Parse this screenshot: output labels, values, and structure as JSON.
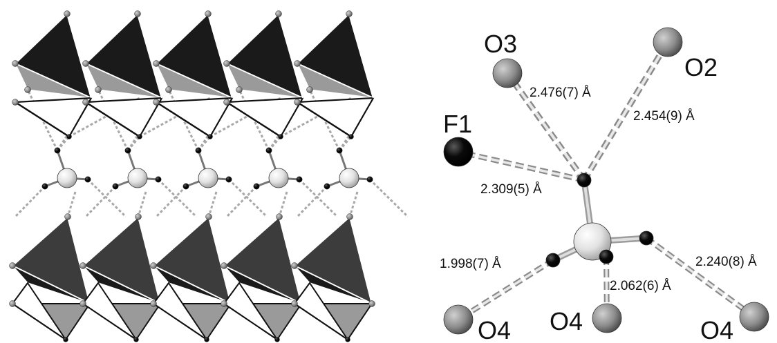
{
  "colors": {
    "polyhedron_dark": "#1a1a1a",
    "polyhedron_mid": "#3c3c3c",
    "polyhedron_light": "#9a9a9a",
    "oxygen_atom": "#8c8c8c",
    "fluorine_atom": "#0a0a0a",
    "central_atom": "#e2e2e2",
    "hydrogen_atom": "#0a0a0a",
    "hydrogen_bond": "#a8a8a8"
  },
  "coordination": {
    "atoms": {
      "o3": "O3",
      "o2": "O2",
      "f1": "F1",
      "o4_left": "O4",
      "o4_mid": "O4",
      "o4_right": "O4"
    },
    "distances": {
      "o3": "2.476(7) Å",
      "o2": "2.454(9) Å",
      "f1": "2.309(5) Å",
      "o4_left": "1.998(7) Å",
      "o4_mid": "2.062(6) Å",
      "o4_right": "2.240(8) Å"
    }
  }
}
